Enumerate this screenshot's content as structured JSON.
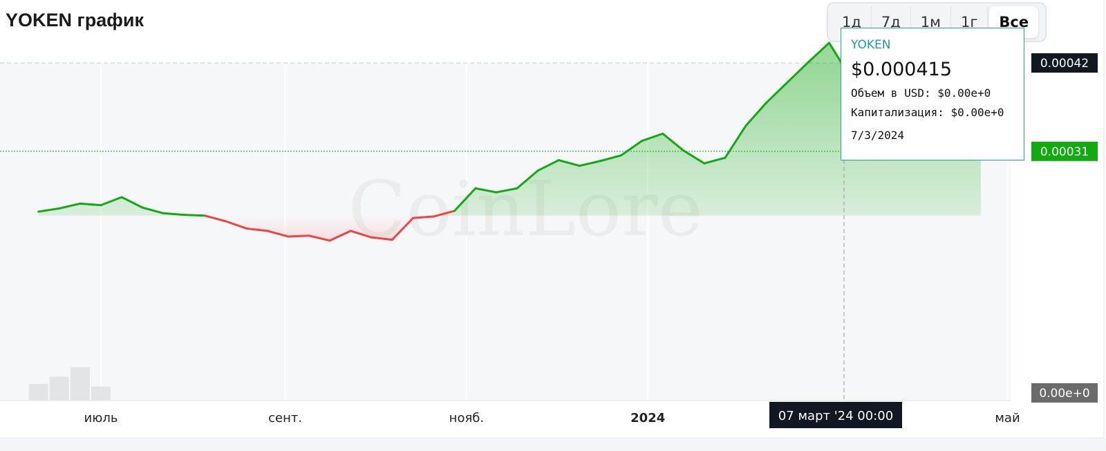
{
  "title": "YOKEN график",
  "range_buttons": [
    "1д",
    "7д",
    "1м",
    "1г",
    "Все"
  ],
  "active_range": "Все",
  "colors": {
    "up": "#11aa11",
    "down": "#ef4444",
    "tooltip_border": "#26a69a",
    "tooltip_name": "#1f9e8f",
    "label_dark": "#131722",
    "label_green": "#11aa11",
    "label_gray": "#6b6b6b"
  },
  "watermark": "CoinLore",
  "tooltip": {
    "name": "YOKEN",
    "price": "$0.000415",
    "volume": "Объем в USD: $0.00e+0",
    "cap": "Капитализация: $0.00e+0",
    "date": "7/3/2024"
  },
  "crosshair_label": "07 март '24   00:00",
  "chart_data": {
    "type": "area",
    "title": "YOKEN график",
    "y_unit": "USD",
    "ylim": [
      0,
      0.00042
    ],
    "baseline_value": 0.00023,
    "current_value": 0.00031,
    "price_labels": [
      "0.00042",
      "0.00031",
      "0.00e+0"
    ],
    "x_tick_labels": [
      {
        "label": "июль",
        "date": "2023-07-01",
        "bold": false
      },
      {
        "label": "сент.",
        "date": "2023-09-01",
        "bold": false
      },
      {
        "label": "нояб.",
        "date": "2023-11-01",
        "bold": false
      },
      {
        "label": "2024",
        "date": "2024-01-01",
        "bold": true
      },
      {
        "label": "май",
        "date": "2024-05-01",
        "bold": false
      }
    ],
    "series": [
      {
        "dates": [
          "2023-06-10",
          "2023-06-17",
          "2023-06-24",
          "2023-07-01",
          "2023-07-08",
          "2023-07-15",
          "2023-07-22",
          "2023-07-29",
          "2023-08-05",
          "2023-08-12",
          "2023-08-19",
          "2023-08-26",
          "2023-09-02",
          "2023-09-09",
          "2023-09-16",
          "2023-09-23",
          "2023-09-30",
          "2023-10-07",
          "2023-10-14",
          "2023-10-21",
          "2023-10-28",
          "2023-11-04",
          "2023-11-11",
          "2023-11-18",
          "2023-11-25",
          "2023-12-02",
          "2023-12-09",
          "2023-12-16",
          "2023-12-23",
          "2023-12-30",
          "2024-01-06",
          "2024-01-13",
          "2024-01-20",
          "2024-01-27",
          "2024-02-03",
          "2024-02-10",
          "2024-02-17",
          "2024-02-24",
          "2024-03-02",
          "2024-03-07",
          "2024-03-11",
          "2024-03-18",
          "2024-03-25",
          "2024-04-01",
          "2024-04-08",
          "2024-04-15",
          "2024-04-22"
        ],
        "values": [
          0.000235,
          0.000239,
          0.000245,
          0.000243,
          0.000253,
          0.00024,
          0.000233,
          0.000231,
          0.00023,
          0.000223,
          0.000214,
          0.000211,
          0.000204,
          0.000205,
          0.000199,
          0.000211,
          0.000203,
          0.0002,
          0.000227,
          0.000229,
          0.000236,
          0.000264,
          0.000259,
          0.000264,
          0.000286,
          0.000299,
          0.000292,
          0.000298,
          0.000305,
          0.000323,
          0.000332,
          0.000311,
          0.000295,
          0.000302,
          0.000342,
          0.000371,
          0.000396,
          0.000421,
          0.000445,
          0.000415,
          0.000408,
          0.000395,
          0.00038,
          0.00036,
          0.000345,
          0.000325,
          0.00031
        ]
      }
    ],
    "volume": {
      "dates": [
        "2023-06-10",
        "2023-06-17",
        "2023-06-24",
        "2023-07-01"
      ],
      "relative_heights": [
        0.5,
        0.72,
        1.0,
        0.42
      ]
    }
  }
}
